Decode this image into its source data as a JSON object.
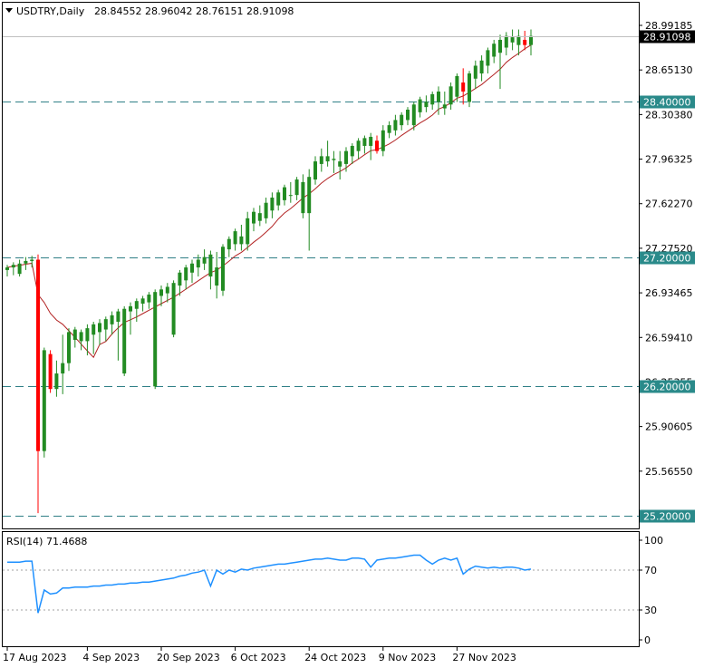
{
  "header": {
    "symbol": "USDTRY,Daily",
    "ohlc": "28.84552 28.96042 28.76151 28.91098",
    "dropdown_icon": "triangle-down-icon"
  },
  "colors": {
    "bull": "#228b22",
    "bear": "#ff0000",
    "ma": "#b22222",
    "level_line": "#2f7f86",
    "level_label_bg": "#2a8a8a",
    "price_label_bg": "#000000",
    "rsi_line": "#1e90ff",
    "grid": "#c8c8c8"
  },
  "chart_data": [
    {
      "type": "candlestick",
      "symbol": "USDTRY",
      "timeframe": "Daily",
      "price_axis_ticks": [
        "28.99185",
        "28.65130",
        "28.30380",
        "27.96325",
        "27.62270",
        "27.27520",
        "26.93465",
        "26.59410",
        "26.25355",
        "25.90605",
        "25.56550",
        "25.22495"
      ],
      "current_price": "28.91098",
      "ylim": [
        25.2,
        29.05
      ],
      "horizontal_levels": [
        {
          "label": "28.40000",
          "value": 28.4
        },
        {
          "label": "27.20000",
          "value": 27.2
        },
        {
          "label": "26.20000",
          "value": 26.2
        },
        {
          "label": "25.20000",
          "value": 25.2
        }
      ],
      "x_labels": [
        "17 Aug 2023",
        "4 Sep 2023",
        "20 Sep 2023",
        "6 Oct 2023",
        "24 Oct 2023",
        "9 Nov 2023",
        "27 Nov 2023"
      ],
      "x_label_index": [
        0,
        13,
        25,
        37,
        49,
        61,
        73
      ],
      "candles": [
        [
          27.1,
          27.14,
          27.05,
          27.12
        ],
        [
          27.12,
          27.16,
          27.06,
          27.14
        ],
        [
          27.07,
          27.18,
          27.05,
          27.15
        ],
        [
          27.15,
          27.2,
          27.1,
          27.17
        ],
        [
          27.17,
          27.21,
          27.12,
          27.18
        ],
        [
          27.18,
          27.22,
          25.22,
          25.7
        ],
        [
          25.7,
          26.5,
          25.65,
          26.48
        ],
        [
          26.45,
          26.48,
          26.15,
          26.18
        ],
        [
          26.18,
          26.4,
          26.12,
          26.3
        ],
        [
          26.3,
          26.6,
          26.14,
          26.38
        ],
        [
          26.38,
          26.65,
          26.32,
          26.62
        ],
        [
          26.56,
          26.66,
          26.5,
          26.64
        ],
        [
          26.55,
          26.64,
          26.48,
          26.62
        ],
        [
          26.55,
          26.68,
          26.44,
          26.65
        ],
        [
          26.6,
          26.7,
          26.45,
          26.68
        ],
        [
          26.62,
          26.72,
          26.52,
          26.69
        ],
        [
          26.64,
          26.74,
          26.55,
          26.72
        ],
        [
          26.68,
          26.78,
          26.6,
          26.75
        ],
        [
          26.7,
          26.8,
          26.4,
          26.78
        ],
        [
          26.3,
          26.82,
          26.28,
          26.8
        ],
        [
          26.78,
          26.85,
          26.6,
          26.82
        ],
        [
          26.8,
          26.88,
          26.7,
          26.86
        ],
        [
          26.84,
          26.9,
          26.78,
          26.88
        ],
        [
          26.85,
          26.93,
          26.8,
          26.91
        ],
        [
          26.2,
          26.95,
          26.18,
          26.93
        ],
        [
          26.9,
          26.98,
          26.82,
          26.95
        ],
        [
          26.92,
          27.0,
          26.85,
          26.97
        ],
        [
          26.6,
          27.02,
          26.58,
          27.0
        ],
        [
          26.98,
          27.1,
          26.9,
          27.08
        ],
        [
          27.02,
          27.14,
          26.95,
          27.12
        ],
        [
          27.08,
          27.18,
          27.0,
          27.15
        ],
        [
          27.12,
          27.22,
          27.05,
          27.18
        ],
        [
          27.15,
          27.26,
          27.1,
          27.2
        ],
        [
          27.05,
          27.25,
          26.95,
          27.22
        ],
        [
          26.98,
          27.24,
          26.88,
          27.12
        ],
        [
          26.94,
          27.3,
          26.9,
          27.28
        ],
        [
          27.26,
          27.36,
          27.2,
          27.34
        ],
        [
          27.3,
          27.42,
          27.25,
          27.4
        ],
        [
          27.3,
          27.45,
          27.25,
          27.36
        ],
        [
          27.3,
          27.55,
          27.25,
          27.5
        ],
        [
          27.46,
          27.58,
          27.4,
          27.55
        ],
        [
          27.48,
          27.6,
          27.44,
          27.54
        ],
        [
          27.5,
          27.66,
          27.46,
          27.62
        ],
        [
          27.56,
          27.7,
          27.5,
          27.66
        ],
        [
          27.6,
          27.72,
          27.56,
          27.7
        ],
        [
          27.64,
          27.76,
          27.6,
          27.74
        ],
        [
          27.68,
          27.78,
          27.62,
          27.68
        ],
        [
          27.68,
          27.82,
          27.64,
          27.8
        ],
        [
          27.54,
          27.84,
          27.5,
          27.78
        ],
        [
          27.54,
          27.88,
          27.25,
          27.82
        ],
        [
          27.8,
          27.98,
          27.76,
          27.94
        ],
        [
          27.92,
          28.04,
          27.86,
          27.98
        ],
        [
          27.94,
          28.1,
          27.9,
          27.98
        ],
        [
          27.95,
          28.02,
          27.85,
          27.96
        ],
        [
          27.9,
          28.02,
          27.8,
          27.94
        ],
        [
          27.92,
          28.05,
          27.86,
          28.02
        ],
        [
          27.98,
          28.08,
          27.92,
          28.06
        ],
        [
          28.02,
          28.12,
          27.96,
          28.1
        ],
        [
          28.06,
          28.14,
          28.0,
          28.12
        ],
        [
          28.06,
          28.16,
          27.95,
          28.13
        ],
        [
          28.1,
          28.14,
          28.0,
          28.02
        ],
        [
          28.02,
          28.22,
          27.98,
          28.18
        ],
        [
          28.16,
          28.25,
          28.12,
          28.22
        ],
        [
          28.18,
          28.3,
          28.14,
          28.26
        ],
        [
          28.22,
          28.32,
          28.18,
          28.3
        ],
        [
          28.26,
          28.36,
          28.22,
          28.34
        ],
        [
          28.22,
          28.4,
          28.18,
          28.38
        ],
        [
          28.32,
          28.44,
          28.28,
          28.42
        ],
        [
          28.36,
          28.45,
          28.32,
          28.4
        ],
        [
          28.38,
          28.48,
          28.34,
          28.46
        ],
        [
          28.4,
          28.52,
          28.3,
          28.48
        ],
        [
          28.35,
          28.48,
          28.3,
          28.38
        ],
        [
          28.38,
          28.55,
          28.34,
          28.52
        ],
        [
          28.44,
          28.62,
          28.4,
          28.6
        ],
        [
          28.55,
          28.66,
          28.38,
          28.48
        ],
        [
          28.4,
          28.64,
          28.36,
          28.62
        ],
        [
          28.58,
          28.72,
          28.5,
          28.68
        ],
        [
          28.62,
          28.76,
          28.56,
          28.72
        ],
        [
          28.68,
          28.82,
          28.62,
          28.8
        ],
        [
          28.75,
          28.88,
          28.7,
          28.85
        ],
        [
          28.78,
          28.92,
          28.5,
          28.88
        ],
        [
          28.82,
          28.94,
          28.76,
          28.91
        ],
        [
          28.86,
          28.96,
          28.8,
          28.9
        ],
        [
          28.84,
          28.96,
          28.76,
          28.91
        ],
        [
          28.88,
          28.95,
          28.8,
          28.84
        ],
        [
          28.84,
          28.96,
          28.76,
          28.91
        ]
      ]
    },
    {
      "type": "line",
      "title": "RSI(14) 71.4688",
      "ylim": [
        0,
        100
      ],
      "y_ticks": [
        "100",
        "70",
        "30",
        "0"
      ],
      "dotted_levels": [
        70,
        30
      ],
      "values": [
        78,
        78,
        78,
        79,
        79,
        27,
        50,
        46,
        47,
        52,
        52,
        53,
        53,
        53,
        54,
        54,
        55,
        55,
        56,
        56,
        57,
        57,
        58,
        58,
        59,
        60,
        61,
        62,
        64,
        65,
        67,
        68,
        70,
        54,
        70,
        66,
        70,
        68,
        71,
        70,
        72,
        73,
        74,
        75,
        76,
        76,
        77,
        78,
        79,
        80,
        81,
        81,
        82,
        81,
        80,
        80,
        82,
        82,
        81,
        73,
        80,
        81,
        82,
        82,
        83,
        84,
        85,
        85,
        80,
        76,
        80,
        82,
        80,
        82,
        66,
        71,
        74,
        73,
        72,
        73,
        72,
        73,
        73,
        72,
        70,
        71
      ]
    }
  ]
}
